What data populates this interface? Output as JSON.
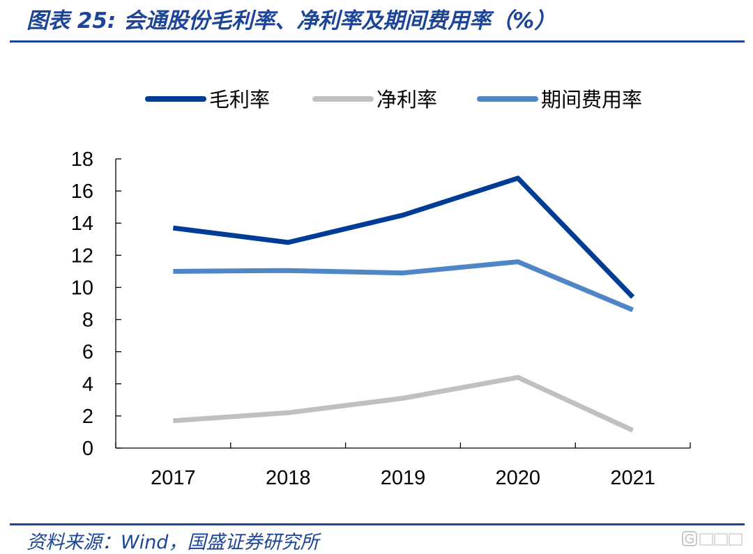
{
  "figure": {
    "title": "图表 25: 会通股份毛利率、净利率及期间费用率（%）",
    "source": "资料来源：Wind，国盛证券研究所"
  },
  "chart_data": {
    "type": "line",
    "title": "图表 25: 会通股份毛利率、净利率及期间费用率（%）",
    "xlabel": "",
    "ylabel": "",
    "categories": [
      "2017",
      "2018",
      "2019",
      "2020",
      "2021"
    ],
    "ylim": [
      0,
      18
    ],
    "yticks": [
      0,
      2,
      4,
      6,
      8,
      10,
      12,
      14,
      16,
      18
    ],
    "grid": false,
    "legend_position": "top-center",
    "series": [
      {
        "name": "毛利率",
        "color": "#003c96",
        "values": [
          13.7,
          12.8,
          14.5,
          16.8,
          9.4
        ]
      },
      {
        "name": "净利率",
        "color": "#c0c0c0",
        "values": [
          1.7,
          2.2,
          3.1,
          4.4,
          1.1
        ]
      },
      {
        "name": "期间费用率",
        "color": "#4f86c6",
        "values": [
          11.0,
          11.05,
          10.9,
          11.6,
          8.6
        ]
      }
    ]
  }
}
